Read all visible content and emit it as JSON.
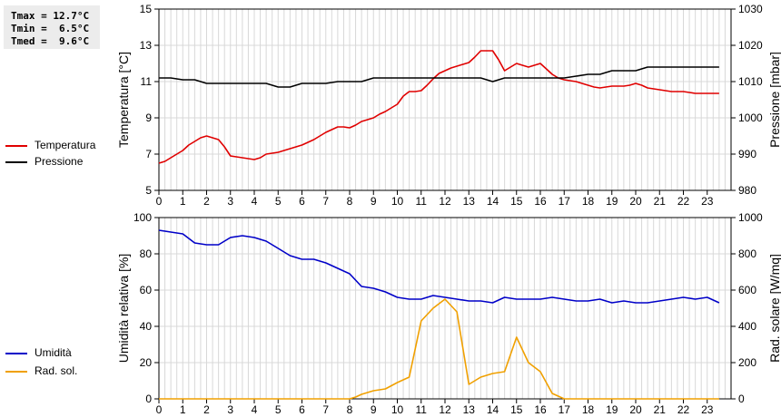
{
  "stats": {
    "tmax": "Tmax = 12.7°C",
    "tmin": "Tmin =  6.5°C",
    "tmed": "Tmed =  9.6°C"
  },
  "legend_top": [
    {
      "label": "Temperatura",
      "color": "#e00000"
    },
    {
      "label": "Pressione",
      "color": "#000000"
    }
  ],
  "legend_bottom": [
    {
      "label": "Umidità",
      "color": "#0000c8"
    },
    {
      "label": "Rad. sol.",
      "color": "#f0a000"
    }
  ],
  "chart_data": [
    {
      "type": "line",
      "xlim": [
        0,
        24
      ],
      "xticks": [
        "0",
        "1",
        "2",
        "3",
        "4",
        "5",
        "6",
        "7",
        "8",
        "9",
        "10",
        "11",
        "12",
        "13",
        "14",
        "15",
        "16",
        "17",
        "18",
        "19",
        "20",
        "21",
        "22",
        "23"
      ],
      "ylabel": "Temperatura [°C]",
      "ylim": [
        5,
        15
      ],
      "yticks": [
        "5",
        "7",
        "9",
        "11",
        "13",
        "15"
      ],
      "y2label": "Pressione [mbar]",
      "y2lim": [
        980,
        1030
      ],
      "y2ticks": [
        "980",
        "990",
        "1000",
        "1010",
        "1020",
        "1030"
      ],
      "grid": true,
      "series": [
        {
          "name": "Temperatura",
          "color": "#e00000",
          "axis": "left",
          "x": [
            0,
            0.25,
            0.5,
            0.75,
            1,
            1.25,
            1.5,
            1.75,
            2,
            2.25,
            2.5,
            2.75,
            3,
            3.25,
            3.5,
            3.75,
            4,
            4.25,
            4.5,
            4.75,
            5,
            5.25,
            5.5,
            5.75,
            6,
            6.25,
            6.5,
            6.75,
            7,
            7.25,
            7.5,
            7.75,
            8,
            8.25,
            8.5,
            8.75,
            9,
            9.25,
            9.5,
            9.75,
            10,
            10.25,
            10.5,
            10.75,
            11,
            11.25,
            11.5,
            11.75,
            12,
            12.25,
            12.5,
            12.75,
            13,
            13.25,
            13.5,
            13.75,
            14,
            14.25,
            14.5,
            14.75,
            15,
            15.25,
            15.5,
            15.75,
            16,
            16.25,
            16.5,
            16.75,
            17,
            17.25,
            17.5,
            17.75,
            18,
            18.25,
            18.5,
            18.75,
            19,
            19.25,
            19.5,
            19.75,
            20,
            20.25,
            20.5,
            20.75,
            21,
            21.25,
            21.5,
            21.75,
            22,
            22.25,
            22.5,
            22.75,
            23,
            23.25,
            23.5
          ],
          "y": [
            6.5,
            6.6,
            6.8,
            7.0,
            7.2,
            7.5,
            7.7,
            7.9,
            8.0,
            7.9,
            7.8,
            7.4,
            6.9,
            6.85,
            6.8,
            6.75,
            6.7,
            6.8,
            7.0,
            7.05,
            7.1,
            7.2,
            7.3,
            7.4,
            7.5,
            7.65,
            7.8,
            8.0,
            8.2,
            8.35,
            8.5,
            8.5,
            8.45,
            8.6,
            8.8,
            8.9,
            9.0,
            9.2,
            9.35,
            9.55,
            9.75,
            10.2,
            10.45,
            10.45,
            10.5,
            10.8,
            11.15,
            11.45,
            11.6,
            11.75,
            11.85,
            11.95,
            12.05,
            12.35,
            12.7,
            12.7,
            12.7,
            12.2,
            11.6,
            11.8,
            12.0,
            11.9,
            11.8,
            11.9,
            12.0,
            11.7,
            11.4,
            11.2,
            11.1,
            11.05,
            11.0,
            10.9,
            10.8,
            10.7,
            10.65,
            10.7,
            10.75,
            10.75,
            10.75,
            10.8,
            10.9,
            10.8,
            10.65,
            10.6,
            10.55,
            10.5,
            10.45,
            10.45,
            10.45,
            10.4,
            10.35,
            10.35,
            10.35,
            10.35,
            10.35
          ]
        },
        {
          "name": "Pressione",
          "color": "#000000",
          "axis": "right",
          "x": [
            0,
            0.5,
            1,
            1.5,
            2,
            2.5,
            3,
            3.5,
            4,
            4.5,
            5,
            5.5,
            6,
            6.5,
            7,
            7.5,
            8,
            8.5,
            9,
            9.5,
            10,
            10.5,
            11,
            11.5,
            12,
            12.5,
            13,
            13.5,
            14,
            14.5,
            15,
            15.5,
            16,
            16.5,
            17,
            17.5,
            18,
            18.5,
            19,
            19.5,
            20,
            20.5,
            21,
            21.5,
            22,
            22.5,
            23,
            23.5
          ],
          "y": [
            1011,
            1011,
            1010.5,
            1010.5,
            1009.5,
            1009.5,
            1009.5,
            1009.5,
            1009.5,
            1009.5,
            1008.5,
            1008.5,
            1009.5,
            1009.5,
            1009.5,
            1010,
            1010,
            1010,
            1011,
            1011,
            1011,
            1011,
            1011,
            1011,
            1011,
            1011,
            1011,
            1011,
            1010,
            1011,
            1011,
            1011,
            1011,
            1011,
            1011,
            1011.5,
            1012,
            1012,
            1013,
            1013,
            1013,
            1014,
            1014,
            1014,
            1014,
            1014,
            1014,
            1014
          ]
        }
      ]
    },
    {
      "type": "line",
      "xlim": [
        0,
        24
      ],
      "xticks": [
        "0",
        "1",
        "2",
        "3",
        "4",
        "5",
        "6",
        "7",
        "8",
        "9",
        "10",
        "11",
        "12",
        "13",
        "14",
        "15",
        "16",
        "17",
        "18",
        "19",
        "20",
        "21",
        "22",
        "23"
      ],
      "ylabel": "Umidità relativa [%]",
      "ylim": [
        0,
        100
      ],
      "yticks": [
        "0",
        "20",
        "40",
        "60",
        "80",
        "100"
      ],
      "y2label": "Rad. solare [W/mq]",
      "y2lim": [
        0,
        1000
      ],
      "y2ticks": [
        "0",
        "200",
        "400",
        "600",
        "800",
        "1000"
      ],
      "grid": true,
      "series": [
        {
          "name": "Umidità",
          "color": "#0000c8",
          "axis": "left",
          "x": [
            0,
            0.5,
            1,
            1.5,
            2,
            2.5,
            3,
            3.5,
            4,
            4.5,
            5,
            5.5,
            6,
            6.5,
            7,
            7.5,
            8,
            8.5,
            9,
            9.5,
            10,
            10.5,
            11,
            11.5,
            12,
            12.5,
            13,
            13.5,
            14,
            14.5,
            15,
            15.5,
            16,
            16.5,
            17,
            17.5,
            18,
            18.5,
            19,
            19.5,
            20,
            20.5,
            21,
            21.5,
            22,
            22.5,
            23,
            23.5
          ],
          "y": [
            93,
            92,
            91,
            86,
            85,
            85,
            89,
            90,
            89,
            87,
            83,
            79,
            77,
            77,
            75,
            72,
            69,
            62,
            61,
            59,
            56,
            55,
            55,
            57,
            56,
            55,
            54,
            54,
            53,
            56,
            55,
            55,
            55,
            56,
            55,
            54,
            54,
            55,
            53,
            54,
            53,
            53,
            54,
            55,
            56,
            55,
            56,
            53
          ]
        },
        {
          "name": "Rad. sol.",
          "color": "#f0a000",
          "axis": "right",
          "x": [
            0,
            0.5,
            1,
            1.5,
            2,
            2.5,
            3,
            3.5,
            4,
            4.5,
            5,
            5.5,
            6,
            6.5,
            7,
            7.5,
            8,
            8.25,
            8.5,
            8.75,
            9,
            9.5,
            10,
            10.5,
            11,
            11.5,
            12,
            12.5,
            13,
            13.5,
            14,
            14.5,
            15,
            15.5,
            16,
            16.5,
            17,
            17.5,
            18,
            18.5,
            19,
            19.5,
            20,
            20.5,
            21,
            21.5,
            22,
            22.5,
            23,
            23.5
          ],
          "y": [
            0,
            0,
            0,
            0,
            0,
            0,
            0,
            0,
            0,
            0,
            0,
            0,
            0,
            0,
            0,
            0,
            0,
            10,
            25,
            35,
            45,
            55,
            90,
            120,
            430,
            500,
            550,
            480,
            80,
            120,
            140,
            150,
            340,
            200,
            150,
            30,
            0,
            0,
            0,
            0,
            0,
            0,
            0,
            0,
            0,
            0,
            0,
            0,
            0,
            0
          ]
        }
      ]
    }
  ]
}
